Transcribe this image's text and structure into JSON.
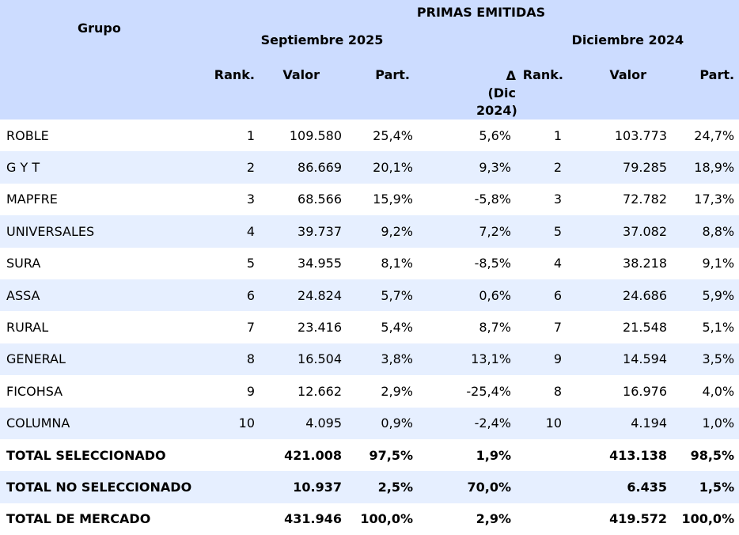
{
  "header": {
    "title": "PRIMAS EMITIDAS",
    "group_col": "Grupo",
    "period_current": "Septiembre 2025",
    "period_prior": "Diciembre 2024",
    "rank": "Rank.",
    "value": "Valor",
    "share": "Part.",
    "delta": "Δ (Dic 2024)"
  },
  "rows": [
    {
      "name": "ROBLE",
      "rank": "1",
      "value": "109.580",
      "share": "25,4%",
      "delta": "5,6%",
      "rank_prior": "1",
      "value_prior": "103.773",
      "share_prior": "24,7%"
    },
    {
      "name": "G Y T",
      "rank": "2",
      "value": "86.669",
      "share": "20,1%",
      "delta": "9,3%",
      "rank_prior": "2",
      "value_prior": "79.285",
      "share_prior": "18,9%"
    },
    {
      "name": "MAPFRE",
      "rank": "3",
      "value": "68.566",
      "share": "15,9%",
      "delta": "-5,8%",
      "rank_prior": "3",
      "value_prior": "72.782",
      "share_prior": "17,3%"
    },
    {
      "name": "UNIVERSALES",
      "rank": "4",
      "value": "39.737",
      "share": "9,2%",
      "delta": "7,2%",
      "rank_prior": "5",
      "value_prior": "37.082",
      "share_prior": "8,8%"
    },
    {
      "name": "SURA",
      "rank": "5",
      "value": "34.955",
      "share": "8,1%",
      "delta": "-8,5%",
      "rank_prior": "4",
      "value_prior": "38.218",
      "share_prior": "9,1%"
    },
    {
      "name": "ASSA",
      "rank": "6",
      "value": "24.824",
      "share": "5,7%",
      "delta": "0,6%",
      "rank_prior": "6",
      "value_prior": "24.686",
      "share_prior": "5,9%"
    },
    {
      "name": "RURAL",
      "rank": "7",
      "value": "23.416",
      "share": "5,4%",
      "delta": "8,7%",
      "rank_prior": "7",
      "value_prior": "21.548",
      "share_prior": "5,1%"
    },
    {
      "name": "GENERAL",
      "rank": "8",
      "value": "16.504",
      "share": "3,8%",
      "delta": "13,1%",
      "rank_prior": "9",
      "value_prior": "14.594",
      "share_prior": "3,5%"
    },
    {
      "name": "FICOHSA",
      "rank": "9",
      "value": "12.662",
      "share": "2,9%",
      "delta": "-25,4%",
      "rank_prior": "8",
      "value_prior": "16.976",
      "share_prior": "4,0%"
    },
    {
      "name": "COLUMNA",
      "rank": "10",
      "value": "4.095",
      "share": "0,9%",
      "delta": "-2,4%",
      "rank_prior": "10",
      "value_prior": "4.194",
      "share_prior": "1,0%"
    }
  ],
  "totals": [
    {
      "name": "TOTAL SELECCIONADO",
      "rank": "",
      "value": "421.008",
      "share": "97,5%",
      "delta": "1,9%",
      "rank_prior": "",
      "value_prior": "413.138",
      "share_prior": "98,5%"
    },
    {
      "name": "TOTAL NO SELECCIONADO",
      "rank": "",
      "value": "10.937",
      "share": "2,5%",
      "delta": "70,0%",
      "rank_prior": "",
      "value_prior": "6.435",
      "share_prior": "1,5%"
    },
    {
      "name": "TOTAL DE MERCADO",
      "rank": "",
      "value": "431.946",
      "share": "100,0%",
      "delta": "2,9%",
      "rank_prior": "",
      "value_prior": "419.572",
      "share_prior": "100,0%"
    }
  ],
  "colors": {
    "header_bg": "#ccdcff",
    "row_alt_bg": "#e6efff",
    "row_bg": "#ffffff"
  }
}
